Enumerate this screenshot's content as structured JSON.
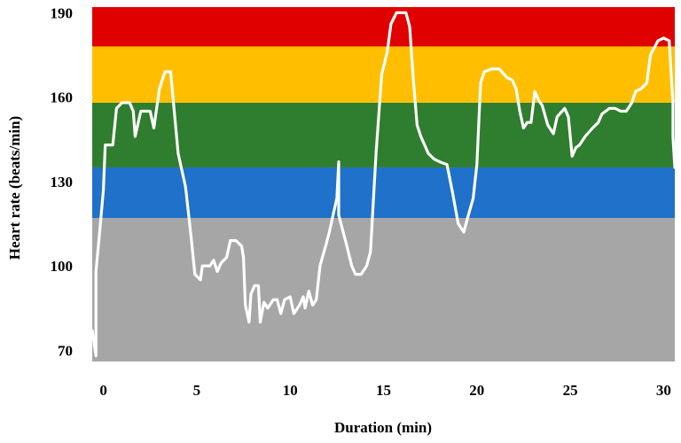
{
  "chart_data": {
    "type": "line",
    "title": "",
    "xlabel": "Duration (min)",
    "ylabel": "Heart rate (beats/min)",
    "xlim": [
      -0.6,
      30.6
    ],
    "ylim": [
      66,
      192
    ],
    "xticks": [
      0,
      5,
      10,
      15,
      20,
      25,
      30
    ],
    "yticks": [
      70,
      100,
      130,
      160,
      190
    ],
    "grid": false,
    "legend": "none",
    "zones": [
      {
        "name": "zone-gray",
        "from": 66,
        "to": 117,
        "color": "#a6a6a6"
      },
      {
        "name": "zone-blue",
        "from": 117,
        "to": 135,
        "color": "#1f71c9"
      },
      {
        "name": "zone-green",
        "from": 135,
        "to": 158,
        "color": "#2f7d2e"
      },
      {
        "name": "zone-yellow",
        "from": 158,
        "to": 178,
        "color": "#ffbf00"
      },
      {
        "name": "zone-red",
        "from": 178,
        "to": 192,
        "color": "#e00000"
      }
    ],
    "line_color": "#ffffff",
    "series": [
      {
        "name": "Heart rate",
        "points": [
          [
            -0.6,
            77
          ],
          [
            -0.4,
            68
          ],
          [
            -0.4,
            98
          ],
          [
            -0.2,
            112
          ],
          [
            0.0,
            127
          ],
          [
            0.1,
            143
          ],
          [
            0.5,
            143
          ],
          [
            0.7,
            156
          ],
          [
            1.0,
            158
          ],
          [
            1.4,
            158
          ],
          [
            1.6,
            155
          ],
          [
            1.7,
            146
          ],
          [
            2.0,
            155
          ],
          [
            2.5,
            155
          ],
          [
            2.7,
            149
          ],
          [
            3.0,
            163
          ],
          [
            3.3,
            169
          ],
          [
            3.6,
            169
          ],
          [
            4.0,
            140
          ],
          [
            4.4,
            128
          ],
          [
            4.7,
            110
          ],
          [
            4.9,
            97
          ],
          [
            5.2,
            95
          ],
          [
            5.3,
            100
          ],
          [
            5.7,
            100
          ],
          [
            5.9,
            102
          ],
          [
            6.1,
            98
          ],
          [
            6.3,
            101
          ],
          [
            6.6,
            103
          ],
          [
            6.8,
            109
          ],
          [
            7.1,
            109
          ],
          [
            7.4,
            107
          ],
          [
            7.5,
            103
          ],
          [
            7.6,
            86
          ],
          [
            7.8,
            80
          ],
          [
            7.9,
            90
          ],
          [
            8.1,
            93
          ],
          [
            8.3,
            93
          ],
          [
            8.4,
            80
          ],
          [
            8.6,
            87
          ],
          [
            8.8,
            85
          ],
          [
            9.1,
            88
          ],
          [
            9.3,
            88
          ],
          [
            9.5,
            83
          ],
          [
            9.7,
            88
          ],
          [
            10.0,
            89
          ],
          [
            10.2,
            83
          ],
          [
            10.5,
            86
          ],
          [
            10.7,
            89
          ],
          [
            10.8,
            85
          ],
          [
            11.0,
            91
          ],
          [
            11.2,
            86
          ],
          [
            11.4,
            88
          ],
          [
            11.6,
            100
          ],
          [
            11.9,
            107
          ],
          [
            12.1,
            112
          ],
          [
            12.3,
            118
          ],
          [
            12.5,
            124
          ],
          [
            12.6,
            137
          ],
          [
            12.6,
            118
          ],
          [
            12.8,
            113
          ],
          [
            13.0,
            108
          ],
          [
            13.3,
            100
          ],
          [
            13.5,
            97
          ],
          [
            13.8,
            97
          ],
          [
            14.1,
            100
          ],
          [
            14.3,
            105
          ],
          [
            14.6,
            140
          ],
          [
            14.9,
            168
          ],
          [
            15.2,
            176
          ],
          [
            15.4,
            186
          ],
          [
            15.7,
            190
          ],
          [
            16.2,
            190
          ],
          [
            16.4,
            185
          ],
          [
            16.6,
            166
          ],
          [
            16.8,
            150
          ],
          [
            17.0,
            146
          ],
          [
            17.4,
            140
          ],
          [
            17.7,
            138
          ],
          [
            18.0,
            137
          ],
          [
            18.4,
            136
          ],
          [
            18.7,
            126
          ],
          [
            19.0,
            115
          ],
          [
            19.3,
            112
          ],
          [
            19.5,
            117
          ],
          [
            19.8,
            124
          ],
          [
            20.0,
            136
          ],
          [
            20.2,
            165
          ],
          [
            20.4,
            169
          ],
          [
            20.8,
            170
          ],
          [
            21.2,
            170
          ],
          [
            21.6,
            167
          ],
          [
            21.9,
            166
          ],
          [
            22.1,
            163
          ],
          [
            22.3,
            155
          ],
          [
            22.5,
            149
          ],
          [
            22.7,
            151
          ],
          [
            22.9,
            151
          ],
          [
            23.1,
            162
          ],
          [
            23.3,
            159
          ],
          [
            23.5,
            157
          ],
          [
            23.8,
            150
          ],
          [
            24.1,
            147
          ],
          [
            24.3,
            153
          ],
          [
            24.7,
            156
          ],
          [
            24.9,
            153
          ],
          [
            25.1,
            139
          ],
          [
            25.3,
            142
          ],
          [
            25.5,
            143
          ],
          [
            25.8,
            146
          ],
          [
            26.2,
            149
          ],
          [
            26.5,
            151
          ],
          [
            26.7,
            154
          ],
          [
            27.1,
            156
          ],
          [
            27.4,
            156
          ],
          [
            27.7,
            155
          ],
          [
            28.0,
            155
          ],
          [
            28.3,
            158
          ],
          [
            28.5,
            162
          ],
          [
            28.8,
            163
          ],
          [
            29.1,
            165
          ],
          [
            29.3,
            175
          ],
          [
            29.7,
            180
          ],
          [
            30.0,
            181
          ],
          [
            30.3,
            180
          ],
          [
            30.5,
            158
          ],
          [
            30.5,
            146
          ],
          [
            30.6,
            135
          ]
        ]
      }
    ]
  }
}
